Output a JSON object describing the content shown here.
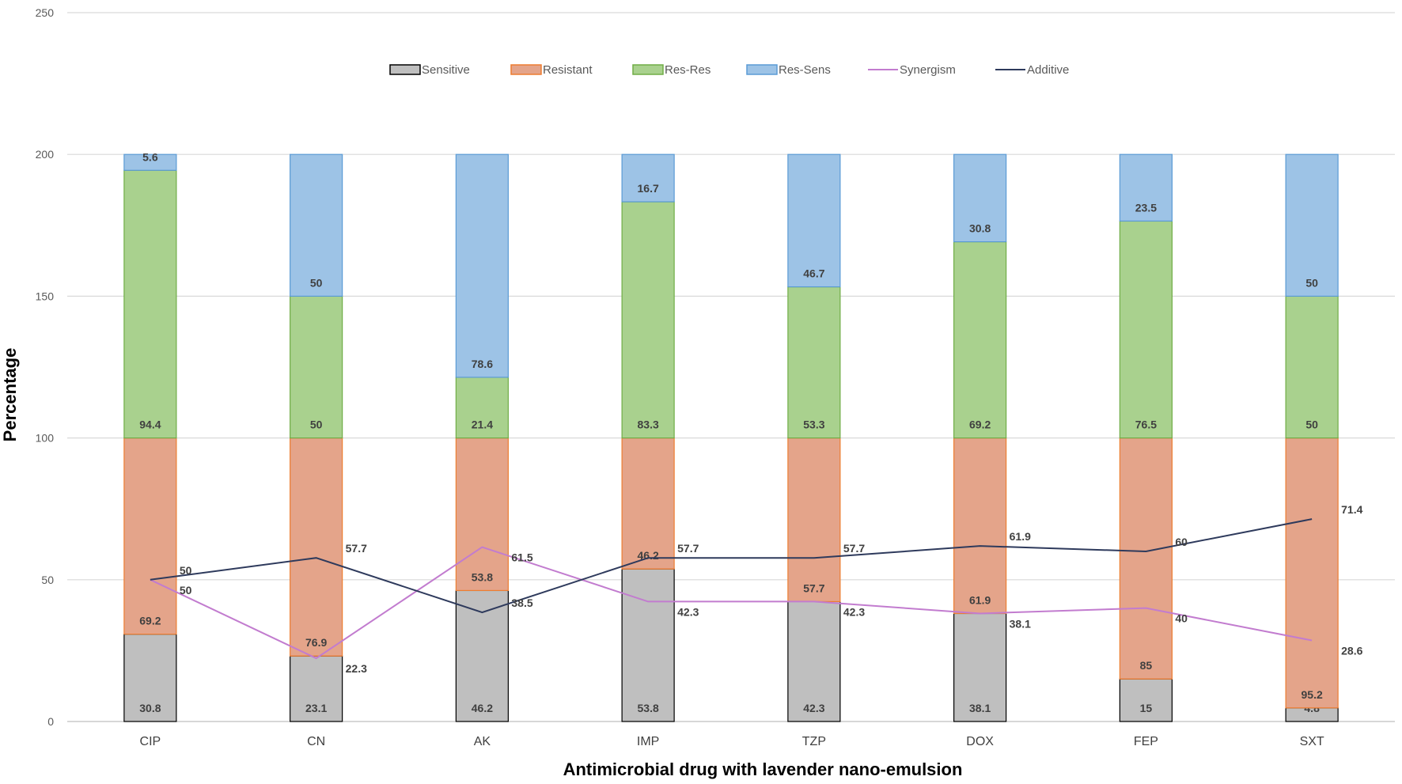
{
  "chart_data": {
    "type": "bar",
    "stacked": true,
    "title": "",
    "xlabel": "Antimicrobial drug with lavender nano-emulsion",
    "ylabel": "Percentage",
    "ylim": [
      0,
      250
    ],
    "yticks": [
      0,
      50,
      100,
      150,
      200,
      250
    ],
    "grid": true,
    "legend_position": "top",
    "categories": [
      "CIP",
      "CN",
      "AK",
      "IMP",
      "TZP",
      "DOX",
      "FEP",
      "SXT"
    ],
    "series": [
      {
        "name": "Sensitive",
        "kind": "bar",
        "color": "#bfbfbf",
        "stroke": "#000000",
        "values": [
          30.8,
          23.1,
          46.2,
          53.8,
          42.3,
          38.1,
          15,
          4.8
        ]
      },
      {
        "name": "Resistant",
        "kind": "bar",
        "color": "#e4a48a",
        "stroke": "#ed7d31",
        "values": [
          69.2,
          76.9,
          53.8,
          46.2,
          57.7,
          61.9,
          85,
          95.2
        ]
      },
      {
        "name": "Res-Res",
        "kind": "bar",
        "color": "#a9d18e",
        "stroke": "#70ad47",
        "values": [
          94.4,
          50,
          21.4,
          83.3,
          53.3,
          69.2,
          76.5,
          50
        ]
      },
      {
        "name": "Res-Sens",
        "kind": "bar",
        "color": "#9dc3e6",
        "stroke": "#5b9bd5",
        "values": [
          5.6,
          50,
          78.6,
          16.7,
          46.7,
          30.8,
          23.5,
          50
        ]
      },
      {
        "name": "Synergism",
        "kind": "line",
        "color": "#c27ccf",
        "values": [
          50,
          22.3,
          61.5,
          42.3,
          42.3,
          38.1,
          40,
          28.6
        ]
      },
      {
        "name": "Additive",
        "kind": "line",
        "color": "#2e3a5c",
        "values": [
          50,
          57.7,
          38.5,
          57.7,
          57.7,
          61.9,
          60,
          71.4
        ]
      }
    ]
  }
}
